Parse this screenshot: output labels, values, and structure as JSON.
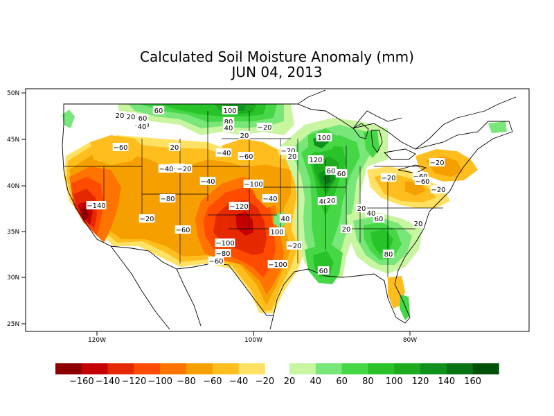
{
  "title_line1": "Calculated Soil Moisture Anomaly (mm)",
  "title_line2": "JUN 04, 2013",
  "lat_ticks": [
    "50N",
    "45N",
    "40N",
    "35N",
    "30N",
    "25N"
  ],
  "lon_ticks": [
    "120W",
    "100W",
    "80W"
  ],
  "colors": {
    "neg160": "#8b0000",
    "neg140": "#c40000",
    "neg120": "#e62800",
    "neg100": "#ff4b00",
    "neg80": "#ff7300",
    "neg60": "#f5a000",
    "neg40": "#ffbe1e",
    "neg20": "#ffe164",
    "pos20": "#c8f5a0",
    "pos40": "#78e678",
    "pos60": "#46d746",
    "pos80": "#28c328",
    "pos100": "#1eaa1e",
    "pos120": "#0f911e",
    "pos140": "#0a7314",
    "pos160": "#00500a"
  },
  "legend": {
    "negative_labels": [
      "-160",
      "-140",
      "-120",
      "-100",
      "-80",
      "-60",
      "-40",
      "-20"
    ],
    "positive_labels": [
      "20",
      "40",
      "60",
      "80",
      "100",
      "120",
      "140",
      "160"
    ]
  },
  "contour_labels": [
    "60",
    "100",
    "20",
    "20",
    "60",
    "-20",
    "40",
    "80",
    "40",
    "-20",
    "20",
    "100",
    "-60",
    "20",
    "-40",
    "-20",
    "-60",
    "-20",
    "-60",
    "20",
    "120",
    "60",
    "-40",
    "-20",
    "-60",
    "-100",
    "-40",
    "-20",
    "-140",
    "-80",
    "-20",
    "-40",
    "-120",
    "40",
    "20",
    "-60",
    "-60",
    "-20",
    "40",
    "-100",
    "-80",
    "-60",
    "-100",
    "-20",
    "60",
    "100",
    "20",
    "20",
    "40",
    "60",
    "20",
    "80",
    "60"
  ]
}
